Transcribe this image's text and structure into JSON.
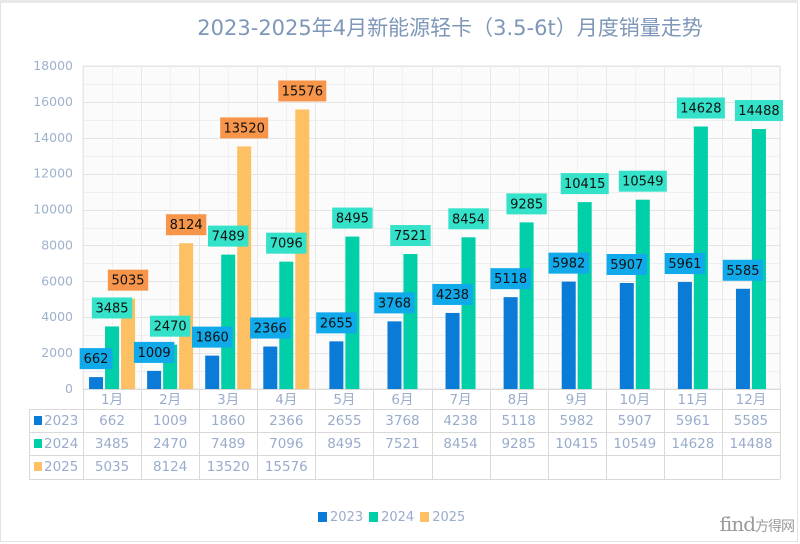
{
  "chart_data": {
    "type": "bar",
    "title": "2023-2025年4月新能源轻卡（3.5-6t）月度销量走势",
    "xlabel": "",
    "ylabel": "",
    "ylim": [
      0,
      18000
    ],
    "yticks": [
      0,
      2000,
      4000,
      6000,
      8000,
      10000,
      12000,
      14000,
      16000,
      18000
    ],
    "grid": true,
    "legend_position": "bottom-center",
    "categories": [
      "1月",
      "2月",
      "3月",
      "4月",
      "5月",
      "6月",
      "7月",
      "8月",
      "9月",
      "10月",
      "11月",
      "12月"
    ],
    "series": [
      {
        "name": "2023",
        "color": "#0a7bd6",
        "label_bg": "#10a9ea",
        "values": [
          662,
          1009,
          1860,
          2366,
          2655,
          3768,
          4238,
          5118,
          5982,
          5907,
          5961,
          5585
        ]
      },
      {
        "name": "2024",
        "color": "#00cfa8",
        "label_bg": "#33e2c8",
        "values": [
          3485,
          2470,
          7489,
          7096,
          8495,
          7521,
          8454,
          9285,
          10415,
          10549,
          14628,
          14488
        ]
      },
      {
        "name": "2025",
        "color": "#fdc062",
        "label_bg": "#f7964a",
        "values": [
          5035,
          8124,
          13520,
          15576,
          null,
          null,
          null,
          null,
          null,
          null,
          null,
          null
        ]
      }
    ],
    "data_table": true
  },
  "watermark": {
    "text_latin": "find",
    "text_cn": "方得网"
  }
}
